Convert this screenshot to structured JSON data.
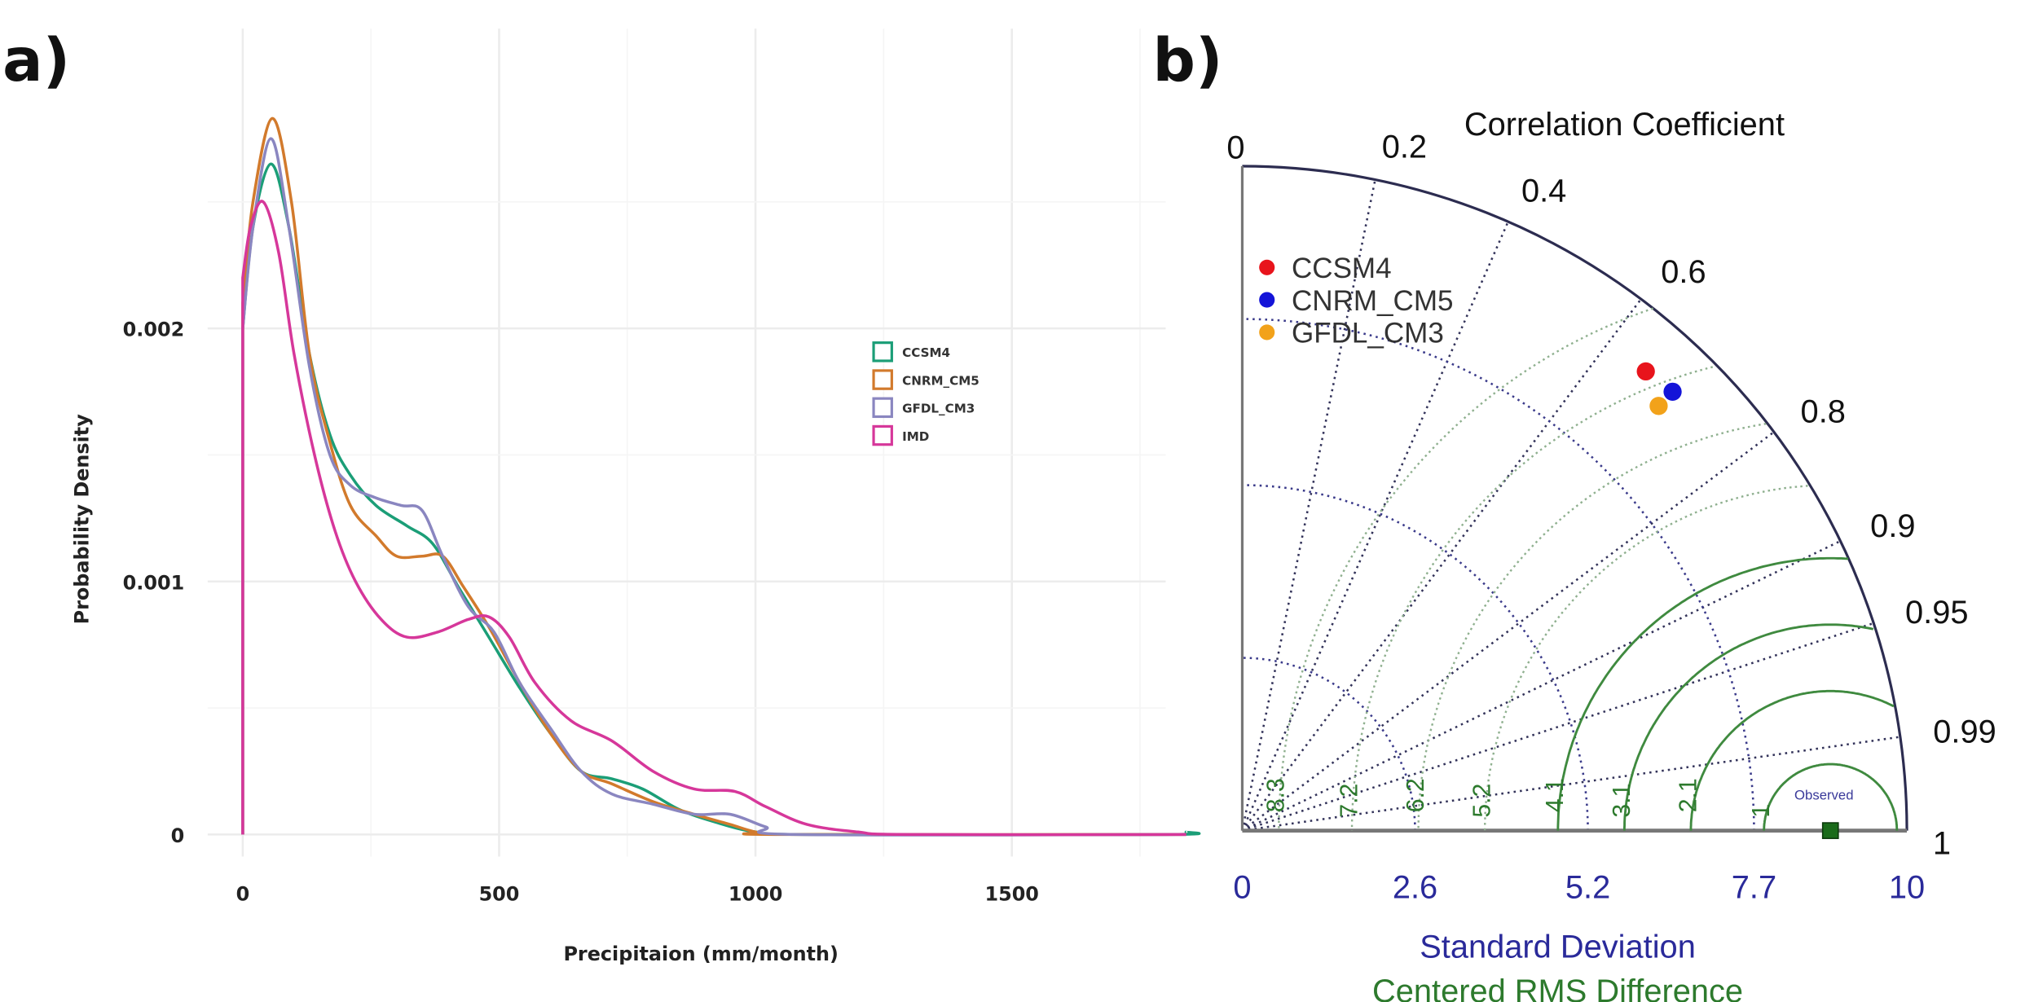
{
  "panel_labels": {
    "a": "a)",
    "b": "b)"
  },
  "chart_data": [
    {
      "type": "line",
      "title": "",
      "xlabel": "Precipitaion (mm/month)",
      "ylabel": "Probability Density",
      "xlim": [
        0,
        1840
      ],
      "ylim": [
        0,
        0.0029
      ],
      "xticks": [
        {
          "value": 0,
          "label": "0"
        },
        {
          "value": 500,
          "label": "500"
        },
        {
          "value": 1000,
          "label": "1000"
        },
        {
          "value": 1500,
          "label": "1500"
        }
      ],
      "yticks": [
        {
          "value": 0,
          "label": "0"
        },
        {
          "value": 0.001,
          "label": "0.001"
        },
        {
          "value": 0.002,
          "label": "0.002"
        }
      ],
      "grid": true,
      "legend_position": "right",
      "series": [
        {
          "name": "CCSM4",
          "color": "#1b9e77",
          "points": [
            [
              0,
              0
            ],
            [
              0,
              0.002
            ],
            [
              20,
              0.0024
            ],
            [
              55,
              0.00265
            ],
            [
              90,
              0.0024
            ],
            [
              130,
              0.0019
            ],
            [
              170,
              0.00158
            ],
            [
              210,
              0.00142
            ],
            [
              260,
              0.0013
            ],
            [
              320,
              0.00122
            ],
            [
              370,
              0.00115
            ],
            [
              420,
              0.00098
            ],
            [
              480,
              0.00078
            ],
            [
              540,
              0.00058
            ],
            [
              600,
              0.0004
            ],
            [
              660,
              0.00025
            ],
            [
              720,
              0.00022
            ],
            [
              780,
              0.00018
            ],
            [
              850,
              0.0001
            ],
            [
              920,
              5e-05
            ],
            [
              1000,
              1e-05
            ],
            [
              1100,
              0
            ],
            [
              1800,
              0
            ],
            [
              1840,
              1e-05
            ]
          ]
        },
        {
          "name": "CNRM_CM5",
          "color": "#d27a2c",
          "points": [
            [
              0,
              0
            ],
            [
              0,
              0.0021
            ],
            [
              20,
              0.0025
            ],
            [
              58,
              0.00283
            ],
            [
              95,
              0.0025
            ],
            [
              130,
              0.0019
            ],
            [
              170,
              0.00155
            ],
            [
              210,
              0.0013
            ],
            [
              260,
              0.00118
            ],
            [
              300,
              0.0011
            ],
            [
              350,
              0.0011
            ],
            [
              390,
              0.0011
            ],
            [
              430,
              0.00098
            ],
            [
              480,
              0.00082
            ],
            [
              540,
              0.0006
            ],
            [
              600,
              0.0004
            ],
            [
              660,
              0.00025
            ],
            [
              720,
              0.0002
            ],
            [
              800,
              0.00013
            ],
            [
              880,
              8e-05
            ],
            [
              950,
              4e-05
            ],
            [
              1000,
              1e-05
            ],
            [
              1050,
              0
            ],
            [
              1840,
              0
            ]
          ]
        },
        {
          "name": "GFDL_CM3",
          "color": "#8a86c0",
          "points": [
            [
              0,
              0
            ],
            [
              0,
              0.002
            ],
            [
              20,
              0.0024
            ],
            [
              55,
              0.00275
            ],
            [
              90,
              0.0024
            ],
            [
              130,
              0.00185
            ],
            [
              170,
              0.0015
            ],
            [
              210,
              0.00138
            ],
            [
              260,
              0.00133
            ],
            [
              310,
              0.0013
            ],
            [
              350,
              0.00128
            ],
            [
              390,
              0.0011
            ],
            [
              440,
              0.0009
            ],
            [
              490,
              0.0008
            ],
            [
              540,
              0.0006
            ],
            [
              600,
              0.00042
            ],
            [
              660,
              0.00025
            ],
            [
              720,
              0.00016
            ],
            [
              800,
              0.00012
            ],
            [
              880,
              8e-05
            ],
            [
              950,
              8e-05
            ],
            [
              1020,
              3e-05
            ],
            [
              1080,
              0
            ],
            [
              1840,
              0
            ]
          ]
        },
        {
          "name": "IMD",
          "color": "#d6379a",
          "points": [
            [
              0,
              0
            ],
            [
              0,
              0.0022
            ],
            [
              15,
              0.0024
            ],
            [
              40,
              0.0025
            ],
            [
              70,
              0.0023
            ],
            [
              100,
              0.0019
            ],
            [
              140,
              0.0015
            ],
            [
              180,
              0.0012
            ],
            [
              220,
              0.001
            ],
            [
              270,
              0.00085
            ],
            [
              320,
              0.00078
            ],
            [
              380,
              0.0008
            ],
            [
              440,
              0.00085
            ],
            [
              480,
              0.00086
            ],
            [
              520,
              0.00078
            ],
            [
              570,
              0.0006
            ],
            [
              640,
              0.00045
            ],
            [
              720,
              0.00037
            ],
            [
              800,
              0.00025
            ],
            [
              880,
              0.00018
            ],
            [
              960,
              0.00017
            ],
            [
              1020,
              0.00011
            ],
            [
              1100,
              4e-05
            ],
            [
              1200,
              1e-05
            ],
            [
              1300,
              0
            ],
            [
              1840,
              0
            ]
          ]
        }
      ]
    },
    {
      "type": "scatter",
      "subtype": "taylor-diagram",
      "title": "Correlation Coefficient",
      "xlabel": "Standard Deviation",
      "xlabel2": "Centered RMS Difference",
      "sd_max": 10,
      "sd_ticks": [
        {
          "value": 0,
          "label": "0"
        },
        {
          "value": 2.6,
          "label": "2.6"
        },
        {
          "value": 5.2,
          "label": "5.2"
        },
        {
          "value": 7.7,
          "label": "7.7"
        },
        {
          "value": 10,
          "label": "10"
        }
      ],
      "corr_ticks": [
        {
          "value": 0,
          "label": "0"
        },
        {
          "value": 0.2,
          "label": "0.2"
        },
        {
          "value": 0.4,
          "label": "0.4"
        },
        {
          "value": 0.6,
          "label": "0.6"
        },
        {
          "value": 0.8,
          "label": "0.8"
        },
        {
          "value": 0.9,
          "label": "0.9"
        },
        {
          "value": 0.95,
          "label": "0.95"
        },
        {
          "value": 0.99,
          "label": "0.99"
        },
        {
          "value": 1,
          "label": "1"
        }
      ],
      "rms_contours": [
        {
          "value": 1,
          "label": "1"
        },
        {
          "value": 2.1,
          "label": "2.1"
        },
        {
          "value": 3.1,
          "label": "3.1"
        },
        {
          "value": 4.1,
          "label": "4.1"
        },
        {
          "value": 5.2,
          "label": "5.2"
        },
        {
          "value": 6.2,
          "label": "6.2"
        },
        {
          "value": 7.2,
          "label": "7.2"
        },
        {
          "value": 8.3,
          "label": "8.3"
        }
      ],
      "observed": {
        "label": "Observed",
        "sd": 8.85,
        "corr": 1,
        "color": "#1a6b1a"
      },
      "legend_position": "top-left",
      "models": [
        {
          "name": "CCSM4",
          "sd": 9.2,
          "corr": 0.66,
          "color": "#e8141c"
        },
        {
          "name": "CNRM_CM5",
          "sd": 9.25,
          "corr": 0.7,
          "color": "#1414d8"
        },
        {
          "name": "GFDL_CM3",
          "sd": 8.95,
          "corr": 0.7,
          "color": "#f2a21a"
        }
      ]
    }
  ]
}
